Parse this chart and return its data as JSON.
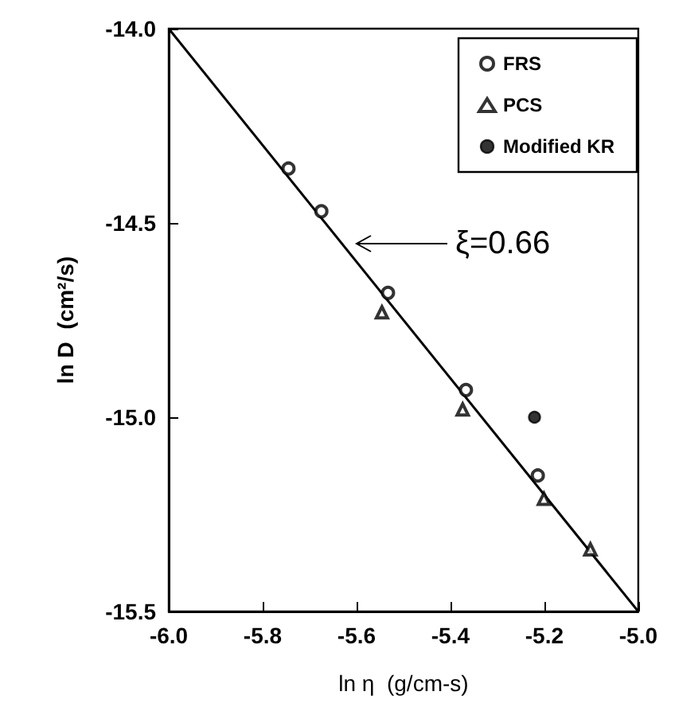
{
  "chart_data": {
    "type": "scatter",
    "xlabel": "ln η  (g/cm-s)",
    "ylabel": "ln D  (cm²/s)",
    "xlim": [
      -6.0,
      -5.0
    ],
    "xticks": [
      {
        "value": -6.0,
        "label": "-6.0"
      },
      {
        "value": -5.8,
        "label": "-5.8"
      },
      {
        "value": -5.6,
        "label": "-5.6"
      },
      {
        "value": -5.4,
        "label": "-5.4"
      },
      {
        "value": -5.2,
        "label": "-5.2"
      },
      {
        "value": -5.0,
        "label": "-5.0"
      }
    ],
    "ylim": [
      -15.5,
      -14.0
    ],
    "yticks": [
      {
        "value": -14.0,
        "label": "-14.0"
      },
      -14.5,
      {
        "value": -15.0,
        "label": "-15.0"
      },
      -15.5
    ],
    "grid": false,
    "legend": "top right",
    "annotations": [
      "ξ=0.66"
    ],
    "series": [
      {
        "name": "FRS",
        "color": "#000000",
        "marker": "circle",
        "x": [
          -5.745,
          -5.675,
          -5.533,
          -5.367,
          -5.214
        ],
        "values": [
          -14.36,
          -14.47,
          -14.68,
          -14.93,
          -15.15
        ]
      },
      {
        "name": "PCS",
        "color": "#000000",
        "marker": "triangle",
        "x": [
          -5.546,
          -5.374,
          -5.201,
          -5.102
        ],
        "values": [
          -14.73,
          -14.98,
          -15.21,
          -15.34
        ]
      },
      {
        "name": "Modified KR",
        "color": "#000000",
        "colors": [
          "#000000"
        ],
        "marker": "circle",
        "x": [
          -5.221
        ],
        "values": [
          -15.0
        ]
      },
      {
        "type": "line",
        "color": "#000000",
        "marker": "none",
        "x": [
          -6.0,
          -5.0
        ],
        "values": [
          -14.0,
          -15.5
        ]
      }
    ]
  }
}
